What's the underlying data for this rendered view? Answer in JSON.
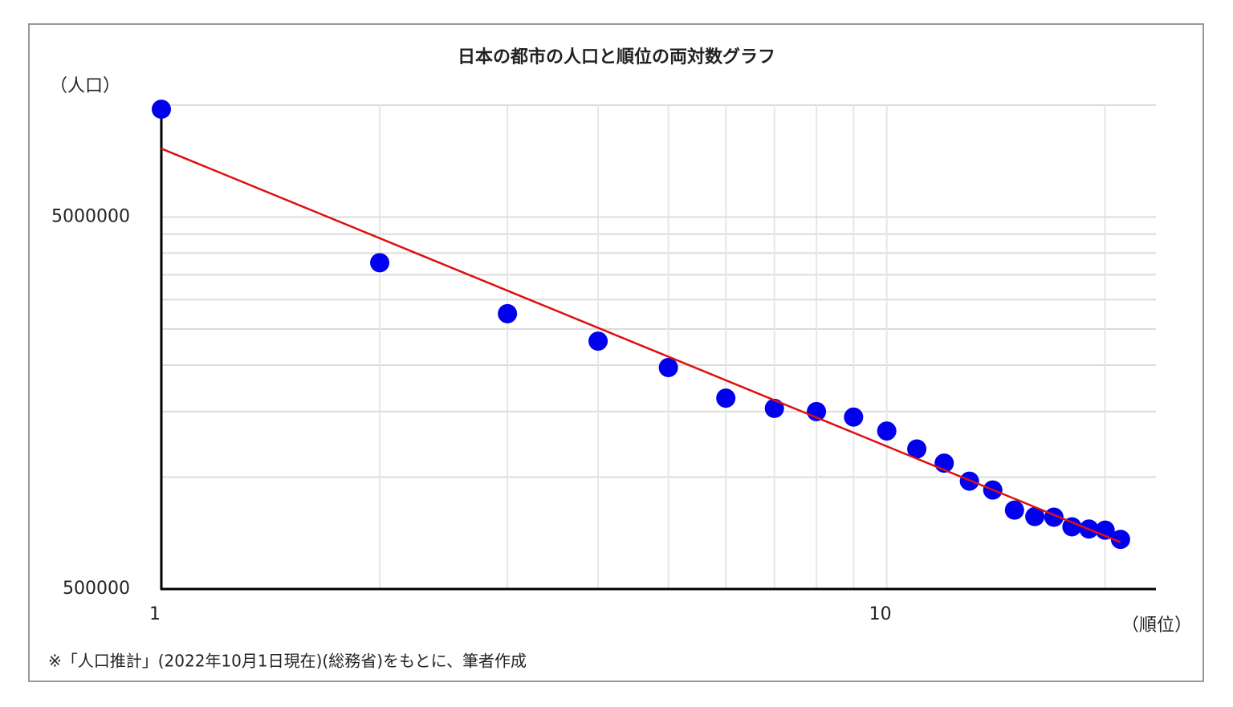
{
  "chart_data": {
    "type": "scatter",
    "title": "日本の都市の人口と順位の両対数グラフ",
    "y_label": "（人口）",
    "x_label": "（順位）",
    "note": "※「人口推計」(2022年10月1日現在)(総務省)をもとに、筆者作成",
    "x_log": true,
    "y_log": true,
    "grid": true,
    "xlim": [
      1,
      23.5
    ],
    "ylim": [
      500000,
      10000000
    ],
    "xticks": [
      1,
      10
    ],
    "yticks": [
      500000,
      5000000
    ],
    "x_minor_ticks": [
      2,
      3,
      4,
      5,
      6,
      7,
      8,
      9,
      20
    ],
    "y_minor_ticks": [
      1000000,
      1500000,
      2000000,
      2500000,
      3000000,
      3500000,
      4000000,
      4500000,
      10000000
    ],
    "x": [
      1,
      2,
      3,
      4,
      5,
      6,
      7,
      8,
      9,
      10,
      11,
      12,
      13,
      14,
      15,
      16,
      17,
      18,
      19,
      20,
      21
    ],
    "series": [
      {
        "color": "#0000ee",
        "values": [
          9750000,
          3770000,
          2750000,
          2320000,
          1970000,
          1630000,
          1530000,
          1500000,
          1450000,
          1330000,
          1190000,
          1090000,
          975000,
          923000,
          815000,
          783000,
          780000,
          735000,
          725000,
          720000,
          680000
        ]
      }
    ],
    "trendline": {
      "color": "#dd1111",
      "x": [
        1,
        21
      ],
      "values": [
        7640000,
        668000
      ]
    }
  }
}
